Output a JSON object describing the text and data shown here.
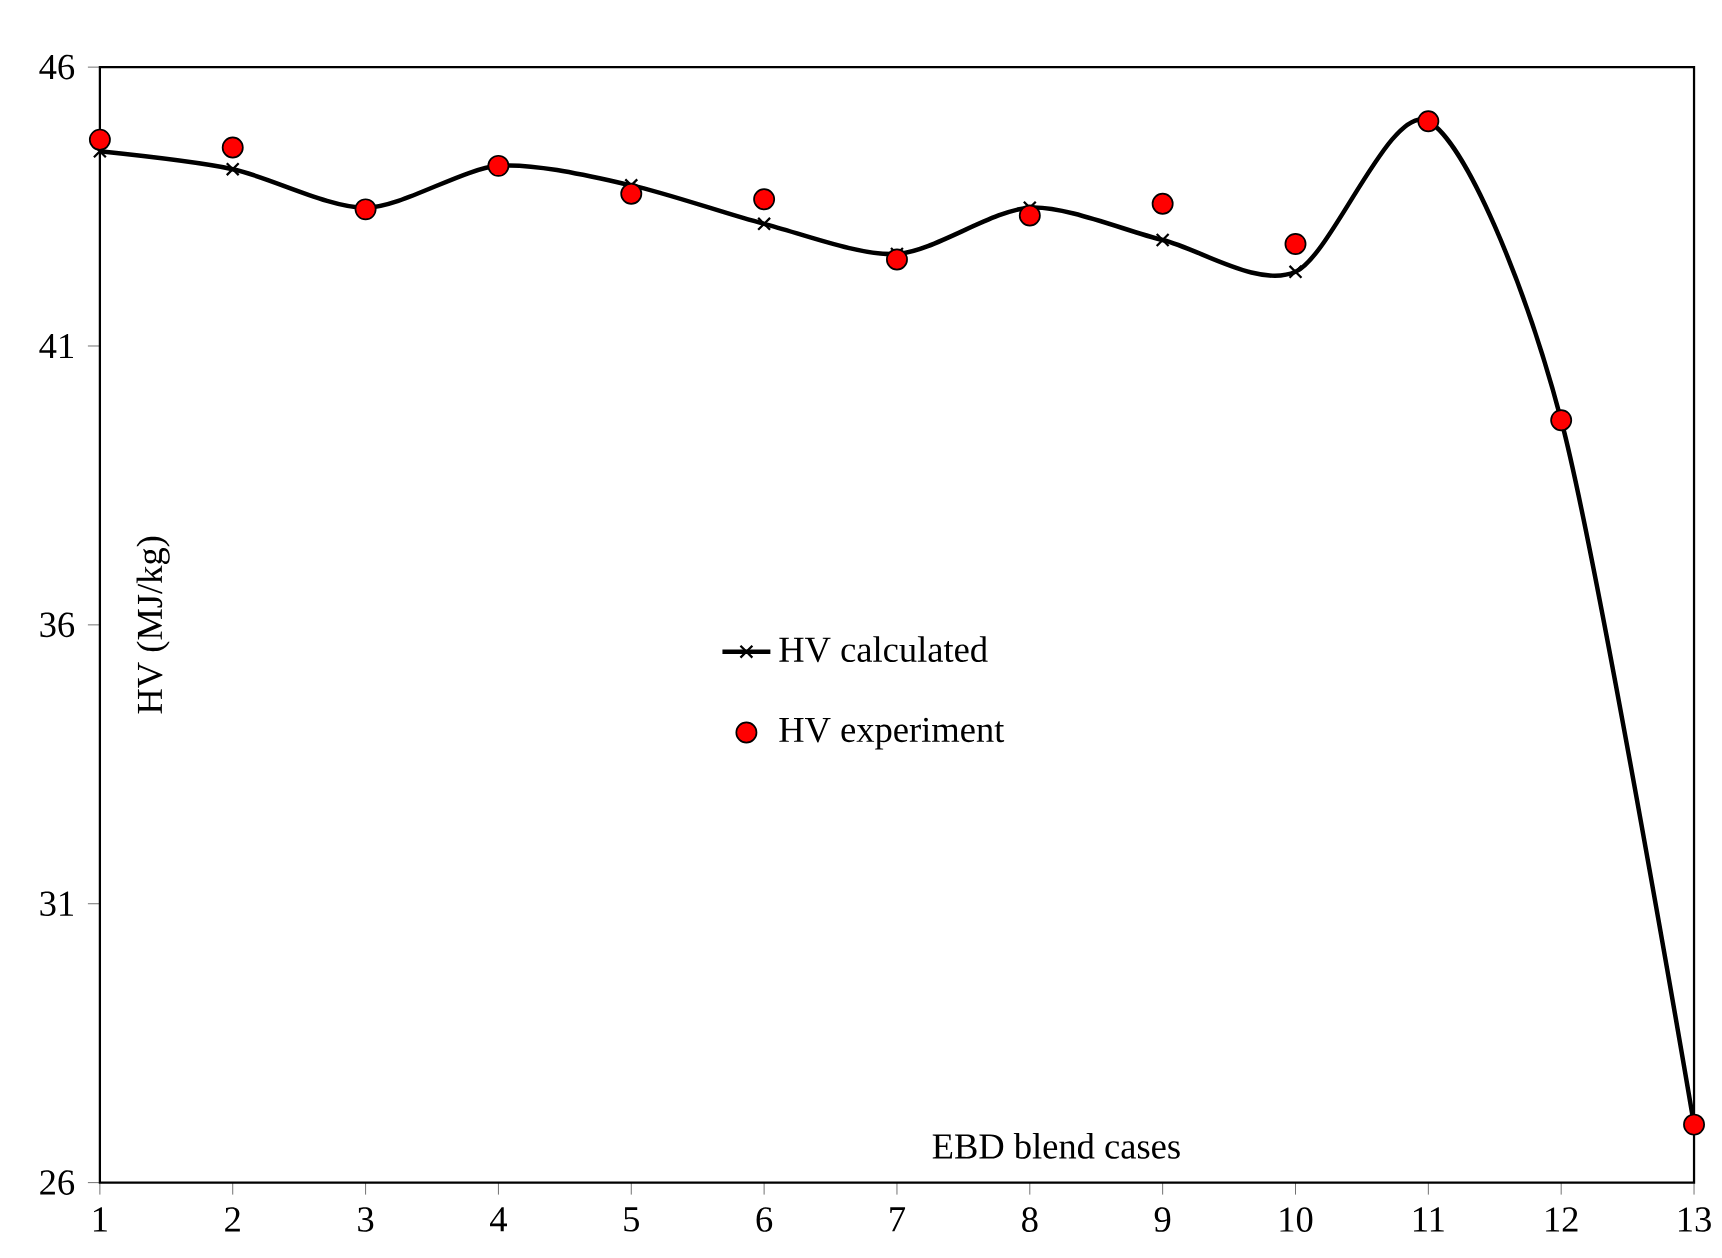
{
  "chart_data": {
    "type": "line",
    "xlabel": "EBD blend cases",
    "ylabel": "HV (MJ/kg)",
    "x": [
      1,
      2,
      3,
      4,
      5,
      6,
      7,
      8,
      9,
      10,
      11,
      12,
      13
    ],
    "series": [
      {
        "name": "HV calculated",
        "color": "#000000",
        "marker": "cross",
        "values": [
          44.49,
          44.17,
          43.48,
          44.23,
          43.88,
          43.19,
          42.65,
          43.48,
          42.9,
          42.33,
          45.03,
          39.67,
          27.04
        ]
      },
      {
        "name": "HV experiment",
        "type": "scatter",
        "color": "#ff0000",
        "marker": "circle",
        "values": [
          44.7,
          44.56,
          43.45,
          44.23,
          43.73,
          43.63,
          42.55,
          43.34,
          43.55,
          42.83,
          45.03,
          39.67,
          27.04
        ]
      }
    ],
    "xlim": [
      1,
      13
    ],
    "ylim": [
      26,
      46
    ],
    "xticks": [
      1,
      2,
      3,
      4,
      5,
      6,
      7,
      8,
      9,
      10,
      11,
      12,
      13
    ],
    "yticks": [
      26,
      31,
      36,
      41,
      46
    ],
    "grid": false,
    "legend": "center"
  }
}
